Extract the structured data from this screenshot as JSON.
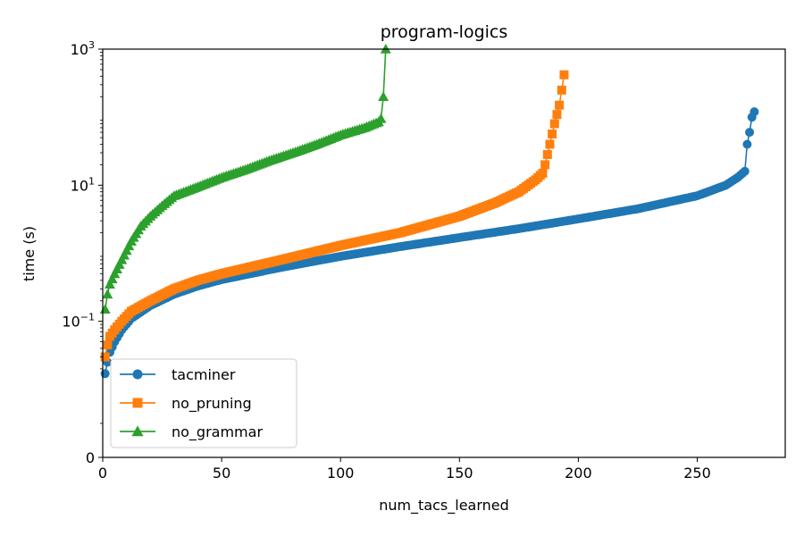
{
  "chart_data": {
    "type": "line",
    "title": "program-logics",
    "xlabel": "num_tacs_learned",
    "ylabel": "time (s)",
    "xlim": [
      0,
      287
    ],
    "x_ticks": [
      0,
      50,
      100,
      150,
      200,
      250
    ],
    "y_scale": "symlog",
    "y_linthresh": 0.01,
    "ylim": [
      0,
      1000
    ],
    "y_ticks": [
      {
        "value": 0,
        "label": "0"
      },
      {
        "value": 0.1,
        "base": "10",
        "exp": "−1"
      },
      {
        "value": 10,
        "base": "10",
        "exp": "1"
      },
      {
        "value": 1000,
        "base": "10",
        "exp": "3"
      }
    ],
    "legend_position": "lower-left",
    "grid": false,
    "series": [
      {
        "name": "tacminer",
        "color": "#1f77b4",
        "marker": "circle",
        "n": 274,
        "anchors": [
          [
            1,
            0.017
          ],
          [
            2,
            0.025
          ],
          [
            3,
            0.035
          ],
          [
            5,
            0.05
          ],
          [
            8,
            0.075
          ],
          [
            12,
            0.11
          ],
          [
            20,
            0.17
          ],
          [
            30,
            0.25
          ],
          [
            40,
            0.33
          ],
          [
            50,
            0.41
          ],
          [
            75,
            0.62
          ],
          [
            100,
            0.9
          ],
          [
            125,
            1.25
          ],
          [
            150,
            1.7
          ],
          [
            175,
            2.3
          ],
          [
            200,
            3.2
          ],
          [
            225,
            4.5
          ],
          [
            250,
            7.0
          ],
          [
            262,
            10.0
          ],
          [
            267,
            13.0
          ],
          [
            270,
            16.0
          ],
          [
            271,
            40.0
          ],
          [
            272,
            60.0
          ],
          [
            273,
            100.0
          ],
          [
            274,
            120.0
          ]
        ]
      },
      {
        "name": "no_pruning",
        "color": "#ff7f0e",
        "marker": "square",
        "n": 194,
        "anchors": [
          [
            1,
            0.03
          ],
          [
            2,
            0.045
          ],
          [
            3,
            0.06
          ],
          [
            5,
            0.075
          ],
          [
            8,
            0.1
          ],
          [
            12,
            0.14
          ],
          [
            20,
            0.2
          ],
          [
            30,
            0.3
          ],
          [
            40,
            0.4
          ],
          [
            50,
            0.5
          ],
          [
            75,
            0.8
          ],
          [
            100,
            1.3
          ],
          [
            125,
            2.0
          ],
          [
            150,
            3.5
          ],
          [
            165,
            5.5
          ],
          [
            175,
            8.0
          ],
          [
            182,
            12.0
          ],
          [
            185,
            15.0
          ],
          [
            186,
            20.0
          ],
          [
            188,
            40.0
          ],
          [
            190,
            80.0
          ],
          [
            192,
            150.0
          ],
          [
            193,
            250.0
          ],
          [
            194,
            420.0
          ]
        ]
      },
      {
        "name": "no_grammar",
        "color": "#2ca02c",
        "marker": "triangle",
        "n": 119,
        "anchors": [
          [
            1,
            0.15
          ],
          [
            2,
            0.25
          ],
          [
            3,
            0.35
          ],
          [
            5,
            0.5
          ],
          [
            8,
            0.8
          ],
          [
            12,
            1.5
          ],
          [
            16,
            2.5
          ],
          [
            20,
            3.5
          ],
          [
            25,
            5.0
          ],
          [
            30,
            7.0
          ],
          [
            40,
            9.5
          ],
          [
            50,
            13.0
          ],
          [
            60,
            17.0
          ],
          [
            70,
            23.0
          ],
          [
            80,
            30.0
          ],
          [
            90,
            40.0
          ],
          [
            100,
            55.0
          ],
          [
            110,
            70.0
          ],
          [
            116,
            85.0
          ],
          [
            117,
            95.0
          ],
          [
            118,
            200.0
          ],
          [
            119,
            1000.0
          ]
        ]
      }
    ]
  }
}
